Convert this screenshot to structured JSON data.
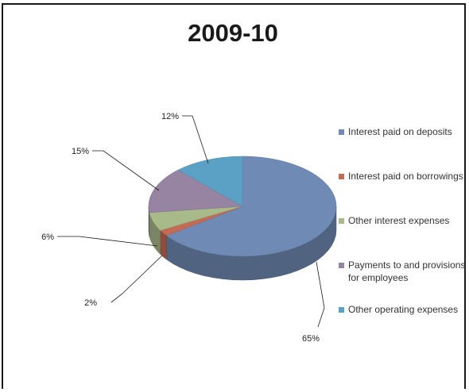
{
  "chart_data": {
    "type": "pie",
    "title": "2009-10",
    "slices": [
      {
        "label": "Interest paid on deposits",
        "value": 65,
        "display": "65%",
        "color": "#6f8bb5"
      },
      {
        "label": "Interest paid on borrowings",
        "value": 2,
        "display": "2%",
        "color": "#c46b56"
      },
      {
        "label": "Other interest expenses",
        "value": 6,
        "display": "6%",
        "color": "#a8b98a"
      },
      {
        "label": "Payments to and provisions for employees",
        "value": 15,
        "display": "15%",
        "color": "#9783a2"
      },
      {
        "label": "Other operating expenses",
        "value": 12,
        "display": "12%",
        "color": "#5ba1c6"
      }
    ],
    "legend_position": "right",
    "style": "3d-pie"
  }
}
